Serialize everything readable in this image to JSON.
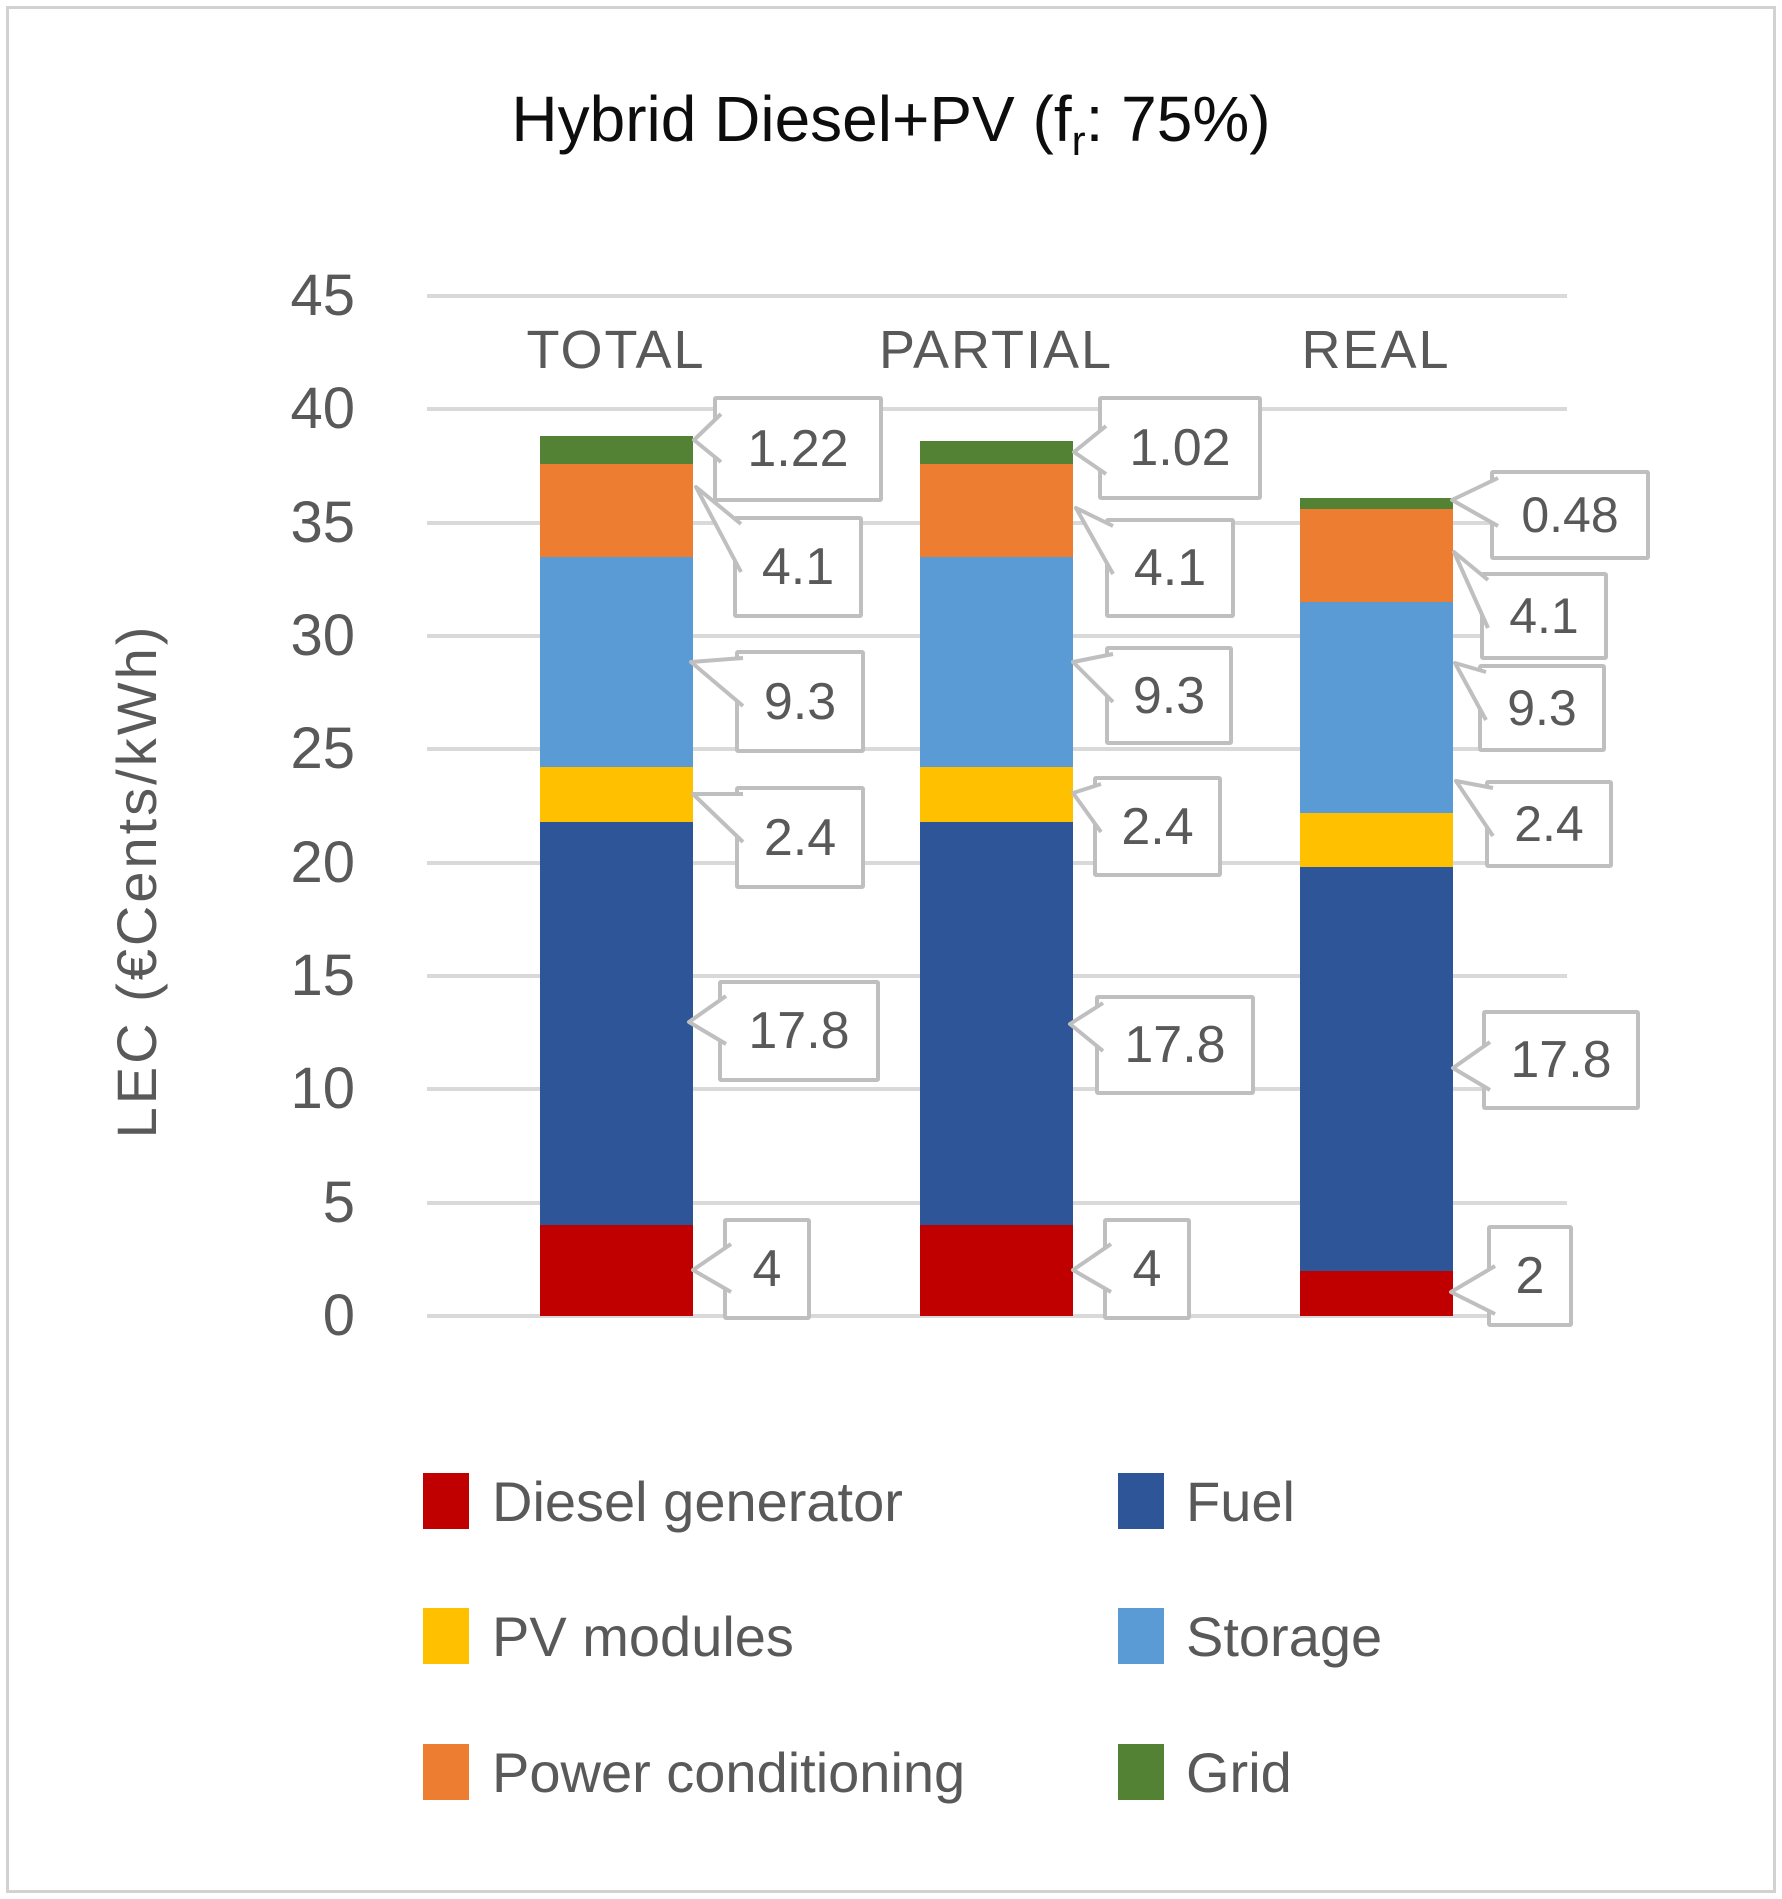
{
  "page": {
    "title": {
      "prefix": "Hybrid Diesel+PV (f",
      "subscript": "r",
      "suffix": ": 75%)"
    }
  },
  "chart_data": {
    "type": "bar",
    "stacked": true,
    "title": "Hybrid Diesel+PV (fr: 75%)",
    "ylabel": "LEC (€Cents/kWh)",
    "ylim": [
      0,
      45
    ],
    "yticks": [
      0,
      5,
      10,
      15,
      20,
      25,
      30,
      35,
      40,
      45
    ],
    "grid": true,
    "legend_position": "bottom",
    "categories": [
      "TOTAL",
      "PARTIAL",
      "REAL"
    ],
    "series": [
      {
        "name": "Diesel generator",
        "color": "#c00000",
        "values": [
          4,
          4,
          2
        ],
        "labels": [
          "4",
          "4",
          "2"
        ]
      },
      {
        "name": "Fuel",
        "color": "#2e5597",
        "values": [
          17.8,
          17.8,
          17.8
        ],
        "labels": [
          "17.8",
          "17.8",
          "17.8"
        ]
      },
      {
        "name": "PV modules",
        "color": "#ffc000",
        "values": [
          2.4,
          2.4,
          2.4
        ],
        "labels": [
          "2.4",
          "2.4",
          "2.4"
        ]
      },
      {
        "name": "Storage",
        "color": "#5b9bd5",
        "values": [
          9.3,
          9.3,
          9.3
        ],
        "labels": [
          "9.3",
          "9.3",
          "9.3"
        ]
      },
      {
        "name": "Power conditioning",
        "color": "#ed7d31",
        "values": [
          4.1,
          4.1,
          4.1
        ],
        "labels": [
          "4.1",
          "4.1",
          "4.1"
        ]
      },
      {
        "name": "Grid",
        "color": "#548235",
        "values": [
          1.22,
          1.02,
          0.48
        ],
        "labels": [
          "1.22",
          "1.02",
          "0.48"
        ]
      }
    ]
  },
  "colors": {
    "gridline": "#d9d9d9",
    "axis_text": "#595959",
    "callout_border": "#bfbfbf",
    "callout_text": "#595959",
    "title_text": "#0d0d0d"
  }
}
